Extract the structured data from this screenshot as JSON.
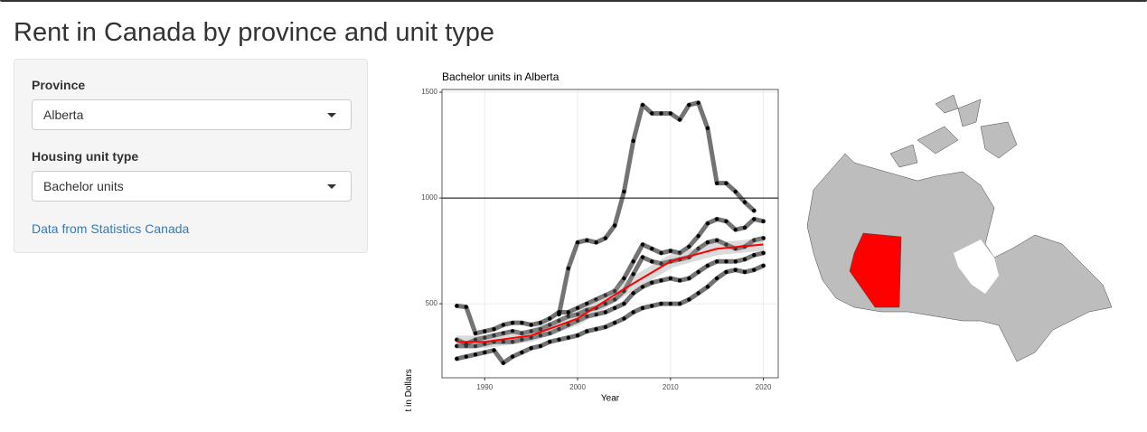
{
  "header": {
    "title": "Rent in Canada by province and unit type"
  },
  "sidebar": {
    "province_label": "Province",
    "province_value": "Alberta",
    "unit_label": "Housing unit type",
    "unit_value": "Bachelor units",
    "link": "Data from Statistics Canada"
  },
  "chart_data": {
    "type": "line",
    "title": "Bachelor units in Alberta",
    "x_label": "Year",
    "y_label": "Rent in Dollars",
    "x": [
      1987,
      1988,
      1989,
      1990,
      1991,
      1992,
      1993,
      1994,
      1995,
      1996,
      1997,
      1998,
      1999,
      2000,
      2001,
      2002,
      2003,
      2004,
      2005,
      2006,
      2007,
      2008,
      2009,
      2010,
      2011,
      2012,
      2013,
      2014,
      2015,
      2016,
      2017,
      2018,
      2019,
      2020
    ],
    "series": [
      {
        "color": "#000000",
        "values": [
          null,
          null,
          null,
          null,
          null,
          null,
          null,
          null,
          null,
          null,
          null,
          450,
          667,
          790,
          800,
          790,
          810,
          870,
          1030,
          1270,
          1440,
          1400,
          1400,
          1400,
          1370,
          1440,
          1450,
          1330,
          1070,
          1070,
          1030,
          980,
          940,
          null
        ]
      },
      {
        "color": "#000000",
        "values": [
          490,
          485,
          360,
          370,
          380,
          400,
          410,
          410,
          400,
          410,
          430,
          460,
          460,
          480,
          500,
          520,
          540,
          560,
          620,
          700,
          780,
          760,
          740,
          750,
          740,
          770,
          820,
          880,
          900,
          890,
          850,
          860,
          900,
          890
        ]
      },
      {
        "color": "#000000",
        "values": [
          330,
          310,
          330,
          340,
          350,
          360,
          370,
          360,
          370,
          380,
          400,
          420,
          440,
          450,
          470,
          480,
          500,
          520,
          560,
          640,
          720,
          700,
          690,
          700,
          710,
          720,
          760,
          790,
          800,
          780,
          760,
          770,
          800,
          810
        ]
      },
      {
        "color": "#000000",
        "values": [
          300,
          300,
          300,
          310,
          320,
          320,
          320,
          330,
          340,
          350,
          360,
          380,
          400,
          420,
          440,
          450,
          460,
          480,
          500,
          550,
          580,
          600,
          610,
          620,
          610,
          620,
          650,
          680,
          700,
          700,
          700,
          710,
          730,
          740
        ]
      },
      {
        "color": "#000000",
        "values": [
          240,
          250,
          260,
          270,
          280,
          220,
          250,
          270,
          290,
          300,
          320,
          330,
          340,
          350,
          370,
          380,
          390,
          410,
          430,
          460,
          480,
          490,
          500,
          500,
          500,
          520,
          550,
          580,
          620,
          650,
          660,
          650,
          660,
          680
        ]
      }
    ],
    "smooth": {
      "color": "#ff0000",
      "x": [
        1987,
        1990,
        1995,
        2000,
        2005,
        2010,
        2015,
        2020
      ],
      "values": [
        320,
        320,
        350,
        430,
        570,
        700,
        760,
        780
      ]
    },
    "hline": 1000,
    "xlim": [
      1985.4,
      2021.6
    ],
    "ylim": [
      150,
      1513
    ],
    "xticks": [
      1990,
      2000,
      2010,
      2020
    ],
    "yticks": [
      500,
      1000,
      1500
    ],
    "grid": true
  },
  "map": {
    "highlight_color": "#ff0000",
    "base_color": "#bdbdbd"
  }
}
